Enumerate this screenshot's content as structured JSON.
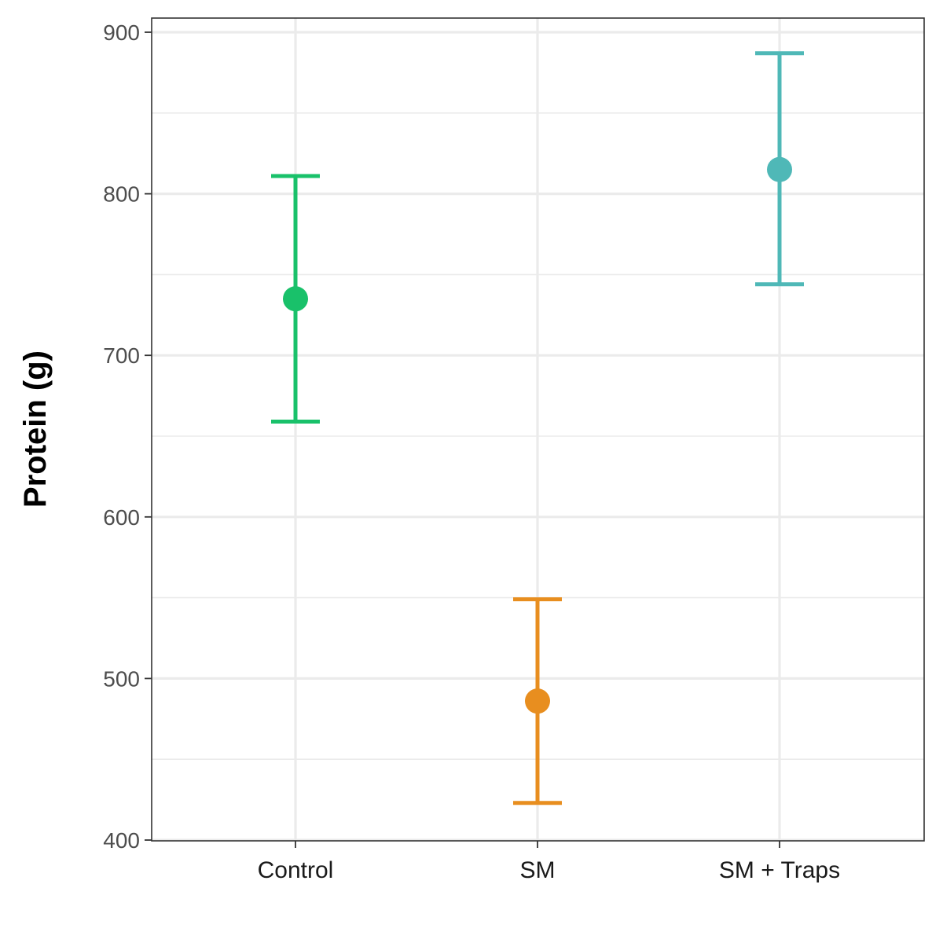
{
  "chart_data": {
    "type": "scatter",
    "title": "",
    "xlabel": "",
    "ylabel": "Protein (g)",
    "ylim": [
      400,
      900
    ],
    "y_major_ticks": [
      400,
      500,
      600,
      700,
      800,
      900
    ],
    "y_minor_ticks": [
      450,
      550,
      650,
      750,
      850
    ],
    "grid": true,
    "legend": "none",
    "categories": [
      "Control",
      "SM",
      "SM + Traps"
    ],
    "points": [
      {
        "category": "Control",
        "value": 735,
        "error_low": 659,
        "error_high": 811,
        "color": "#19C16A"
      },
      {
        "category": "SM",
        "value": 486,
        "error_low": 423,
        "error_high": 549,
        "color": "#E88E1F"
      },
      {
        "category": "SM + Traps",
        "value": 815,
        "error_low": 744,
        "error_high": 887,
        "color": "#4FB8B7"
      }
    ]
  }
}
